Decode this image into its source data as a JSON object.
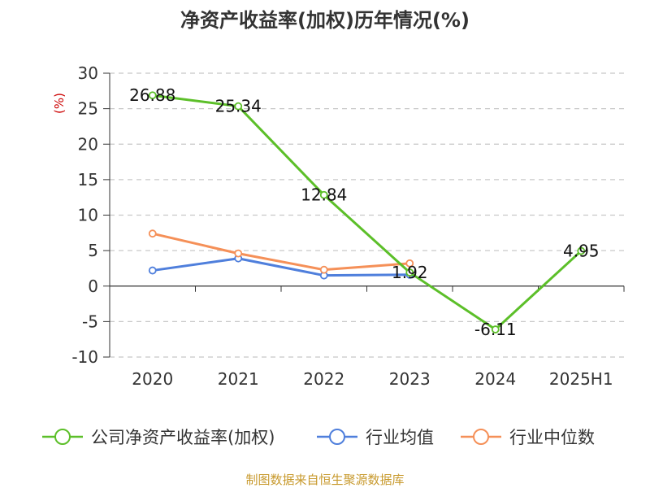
{
  "title": "净资产收益率(加权)历年情况(%)",
  "source": "制图数据来自恒生聚源数据库",
  "colors": {
    "company": "#5cbf29",
    "industry_avg": "#4f7fdc",
    "industry_median": "#f59058",
    "grid": "#c8c8c8",
    "axis": "#333333"
  },
  "chart_data": {
    "type": "line",
    "title": "净资产收益率(加权)历年情况(%)",
    "categories": [
      "2020",
      "2021",
      "2022",
      "2023",
      "2024",
      "2025H1"
    ],
    "ylabel": "(%)",
    "ylim": [
      -10,
      30
    ],
    "yticks": [
      -10,
      -5,
      0,
      5,
      10,
      15,
      20,
      25,
      30
    ],
    "ytick_labels": [
      "-10",
      "-5",
      "0",
      "5",
      "10",
      "15",
      "20",
      "25",
      "30"
    ],
    "grid": true,
    "legend_position": "bottom",
    "series": [
      {
        "name": "公司净资产收益率(加权)",
        "values": [
          26.88,
          25.34,
          12.84,
          1.92,
          -6.11,
          4.95
        ],
        "labels": [
          "26.88",
          "25.34",
          "12.84",
          "1.92",
          "-6.11",
          "4.95"
        ]
      },
      {
        "name": "行业均值",
        "values": [
          2.2,
          3.9,
          1.5,
          1.6,
          null,
          null
        ]
      },
      {
        "name": "行业中位数",
        "values": [
          7.4,
          4.6,
          2.3,
          3.2,
          null,
          null
        ]
      }
    ]
  }
}
